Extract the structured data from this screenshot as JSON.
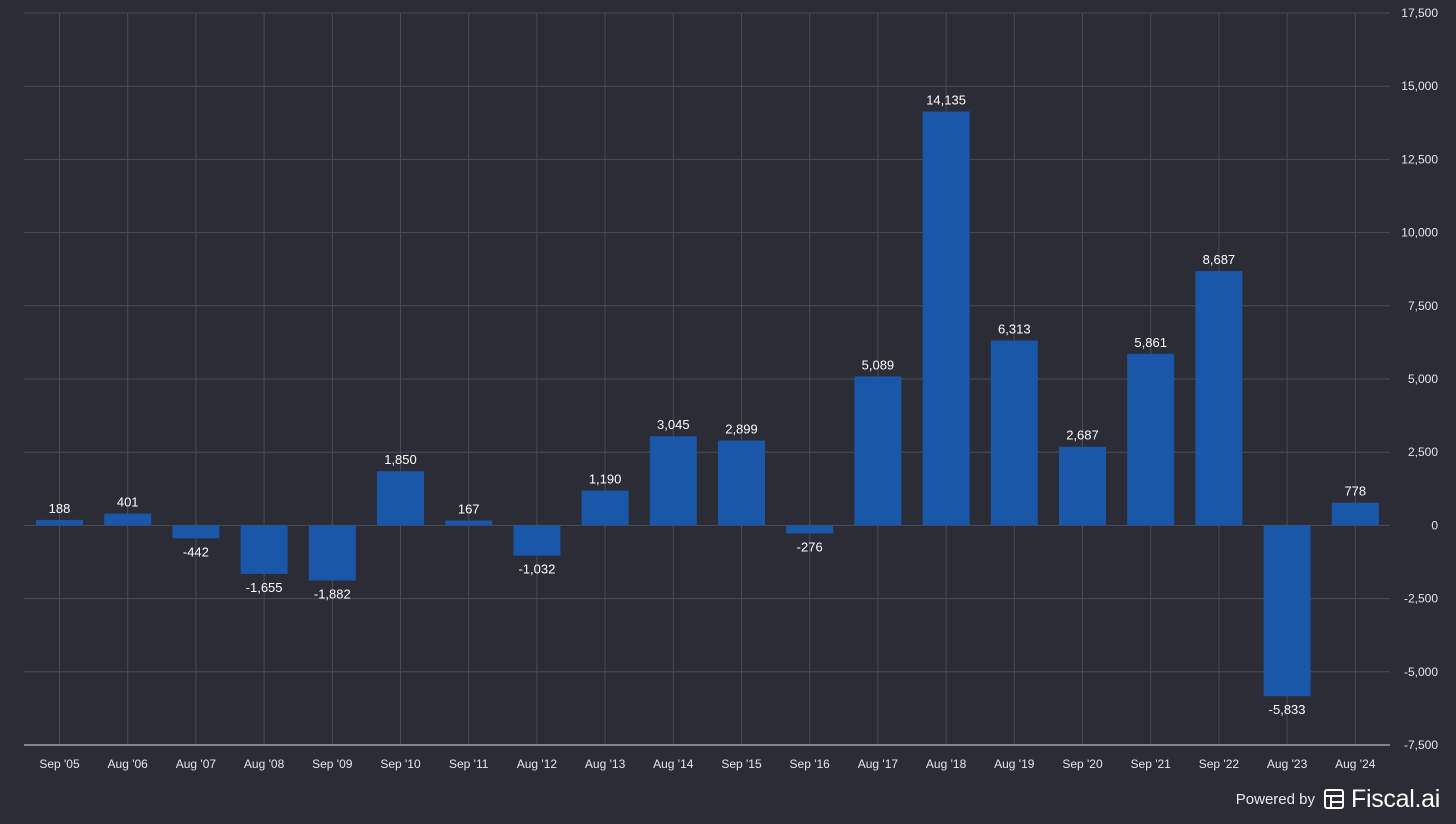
{
  "chart_data": {
    "type": "bar",
    "categories": [
      "Sep '05",
      "Aug '06",
      "Aug '07",
      "Aug '08",
      "Sep '09",
      "Sep '10",
      "Sep '11",
      "Aug '12",
      "Aug '13",
      "Aug '14",
      "Sep '15",
      "Sep '16",
      "Aug '17",
      "Aug '18",
      "Aug '19",
      "Sep '20",
      "Sep '21",
      "Sep '22",
      "Aug '23",
      "Aug '24"
    ],
    "values": [
      188,
      401,
      -442,
      -1655,
      -1882,
      1850,
      167,
      -1032,
      1190,
      3045,
      2899,
      -276,
      5089,
      14135,
      6313,
      2687,
      5861,
      8687,
      -5833,
      778
    ],
    "data_labels": [
      "188",
      "401",
      "-442",
      "-1,655",
      "-1,882",
      "1,850",
      "167",
      "-1,032",
      "1,190",
      "3,045",
      "2,899",
      "-276",
      "5,089",
      "14,135",
      "6,313",
      "2,687",
      "5,861",
      "8,687",
      "-5,833",
      "778"
    ],
    "y_ticks": [
      17500,
      15000,
      12500,
      10000,
      7500,
      5000,
      2500,
      0,
      -2500,
      -5000,
      -7500
    ],
    "y_tick_labels": [
      "17,500",
      "15,000",
      "12,500",
      "10,000",
      "7,500",
      "5,000",
      "2,500",
      "0",
      "-2,500",
      "-5,000",
      "-7,500"
    ],
    "ylim": [
      -7500,
      17500
    ],
    "y_axis_side": "right",
    "grid": true,
    "legend": "none",
    "title": "",
    "xlabel": "",
    "ylabel": "",
    "colors": {
      "background": "#2b2c36",
      "bar": "#1a57a8",
      "grid": "#4a4c58",
      "text": "#ffffff",
      "axis_text": "#e6e6ea"
    }
  },
  "watermark": {
    "powered_by": "Powered by",
    "brand": "Fiscal.ai",
    "icon": "fiscal-logo-icon"
  }
}
